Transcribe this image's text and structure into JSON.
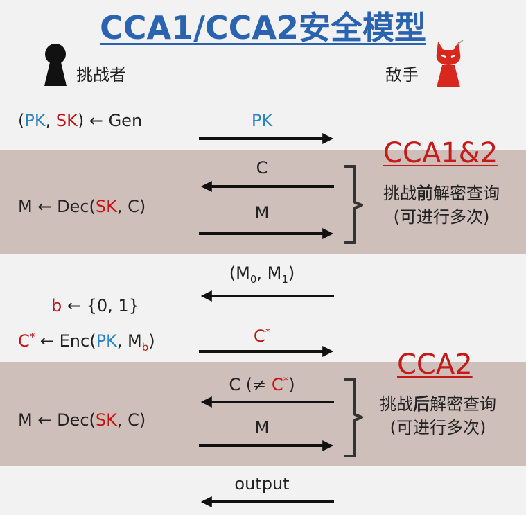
{
  "title": "CCA1/CCA2安全模型",
  "challenger_label": "挑战者",
  "adversary_label": "敌手",
  "gen": {
    "open": "(",
    "pk": "PK",
    "sep": ", ",
    "sk": "SK",
    "rest": ") ← Gen"
  },
  "msg_pk": "PK",
  "cca1_tag": "CCA1&2",
  "phase1": {
    "msg_c": "C",
    "msg_m": "M",
    "dec": {
      "lhs": "M ← Dec(",
      "sk": "SK",
      "rest": ", C)"
    },
    "note_line1_pre": "挑战",
    "note_line1_bold": "前",
    "note_line1_post": "解密查询",
    "note_line2": "(可进行多次)"
  },
  "challenge": {
    "msg_open": "(M",
    "sub0": "0",
    "msg_mid": ", M",
    "sub1": "1",
    "msg_close": ")",
    "b_var": "b",
    "b_rest": " ← {0, 1}",
    "enc_c": "C",
    "enc_star": "*",
    "enc_mid": " ← Enc(",
    "enc_pk": "PK",
    "enc_m": ", M",
    "enc_sub": "b",
    "enc_close": ")",
    "msg_cstar": "C",
    "msg_cstar_sup": "*"
  },
  "cca2_tag": "CCA2",
  "phase2": {
    "msg_c_pre": "C (≠ ",
    "msg_c_red": "C",
    "msg_c_sup": "*",
    "msg_c_close": ")",
    "msg_m": "M",
    "dec": {
      "lhs": "M ← Dec(",
      "sk": "SK",
      "rest": ", C)"
    },
    "note_line1_pre": "挑战",
    "note_line1_bold": "后",
    "note_line1_post": "解密查询",
    "note_line2": "(可进行多次)"
  },
  "output_label": "output",
  "colors": {
    "title": "#2a63b0",
    "blue": "#2b84c6",
    "red": "#c21414",
    "band": "#cfbfbb"
  }
}
